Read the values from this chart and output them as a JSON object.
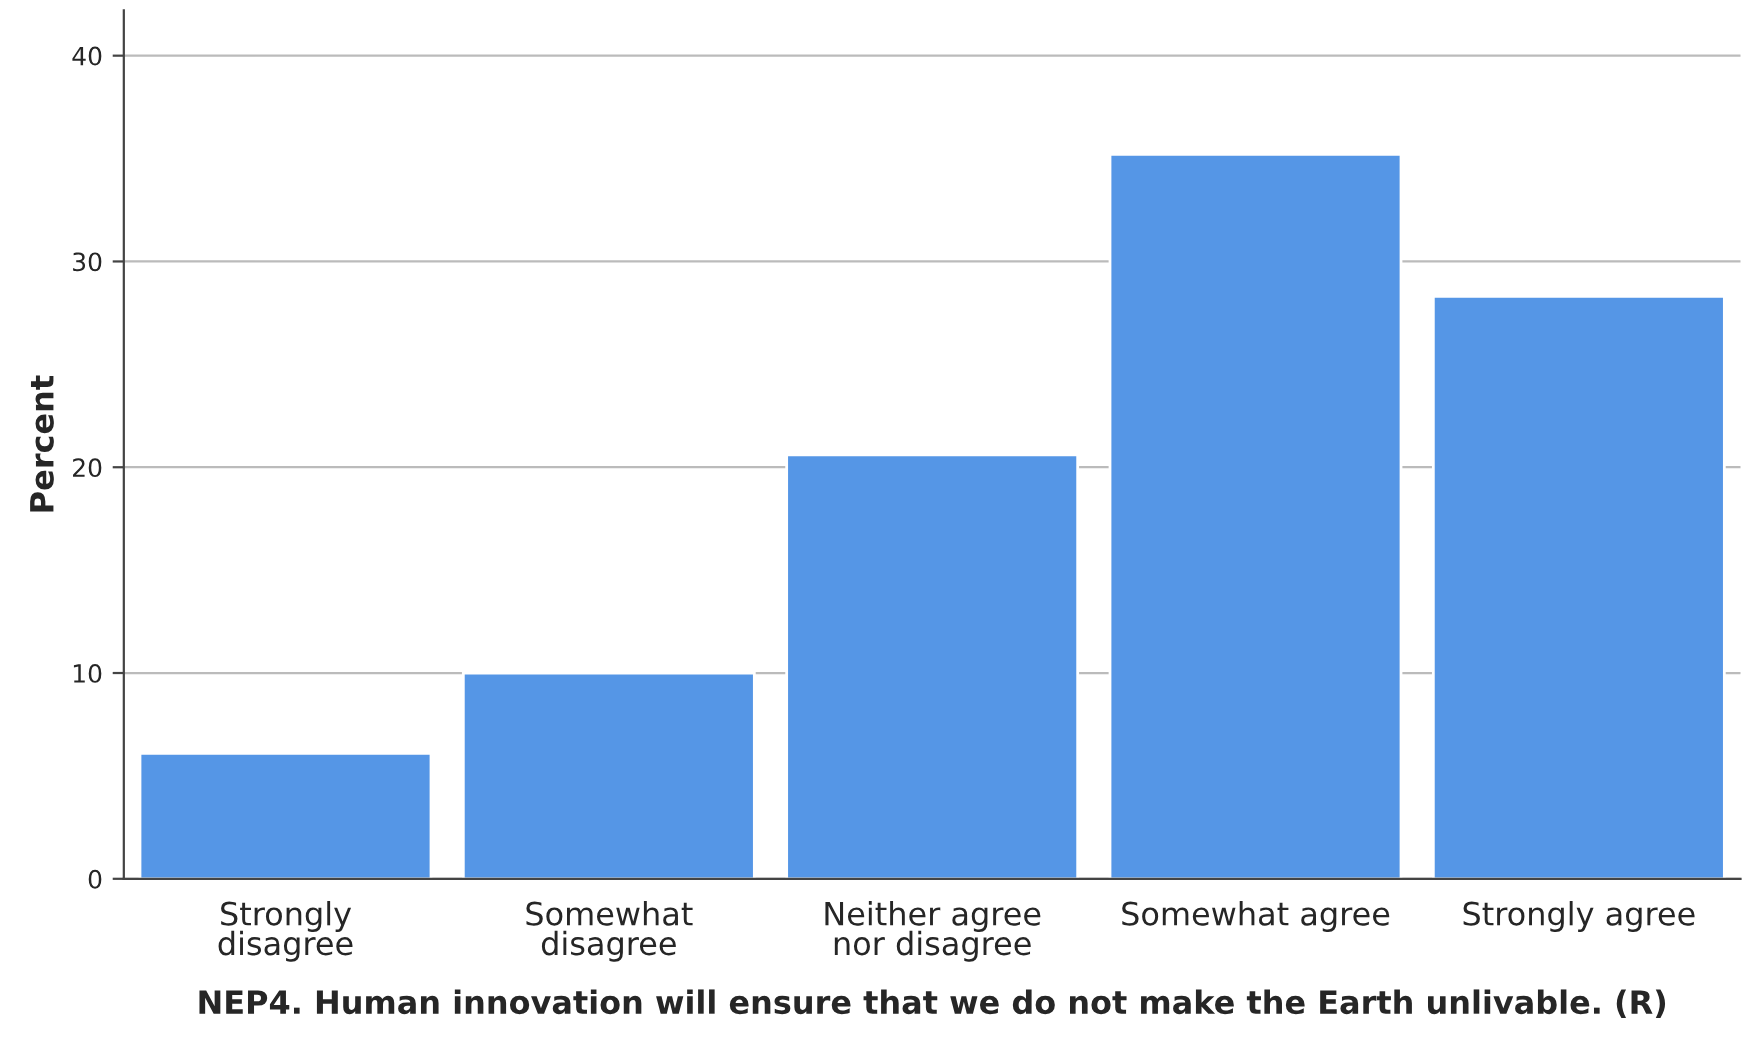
{
  "chart_data": {
    "type": "bar",
    "xlabel": "NEP4. Human innovation will ensure that we do not make the Earth unlivable. (R)",
    "ylabel": "Percent",
    "categories": [
      "Strongly\ndisagree",
      "Somewhat\ndisagree",
      "Neither agree\nnor disagree",
      "Somewhat agree",
      "Strongly agree"
    ],
    "values": [
      6.1,
      10.0,
      20.6,
      35.2,
      28.3
    ],
    "color": "#5596e6",
    "ylim": [
      0,
      42.2
    ],
    "yticks": [
      0,
      10,
      20,
      30,
      40
    ],
    "grid": "y"
  }
}
